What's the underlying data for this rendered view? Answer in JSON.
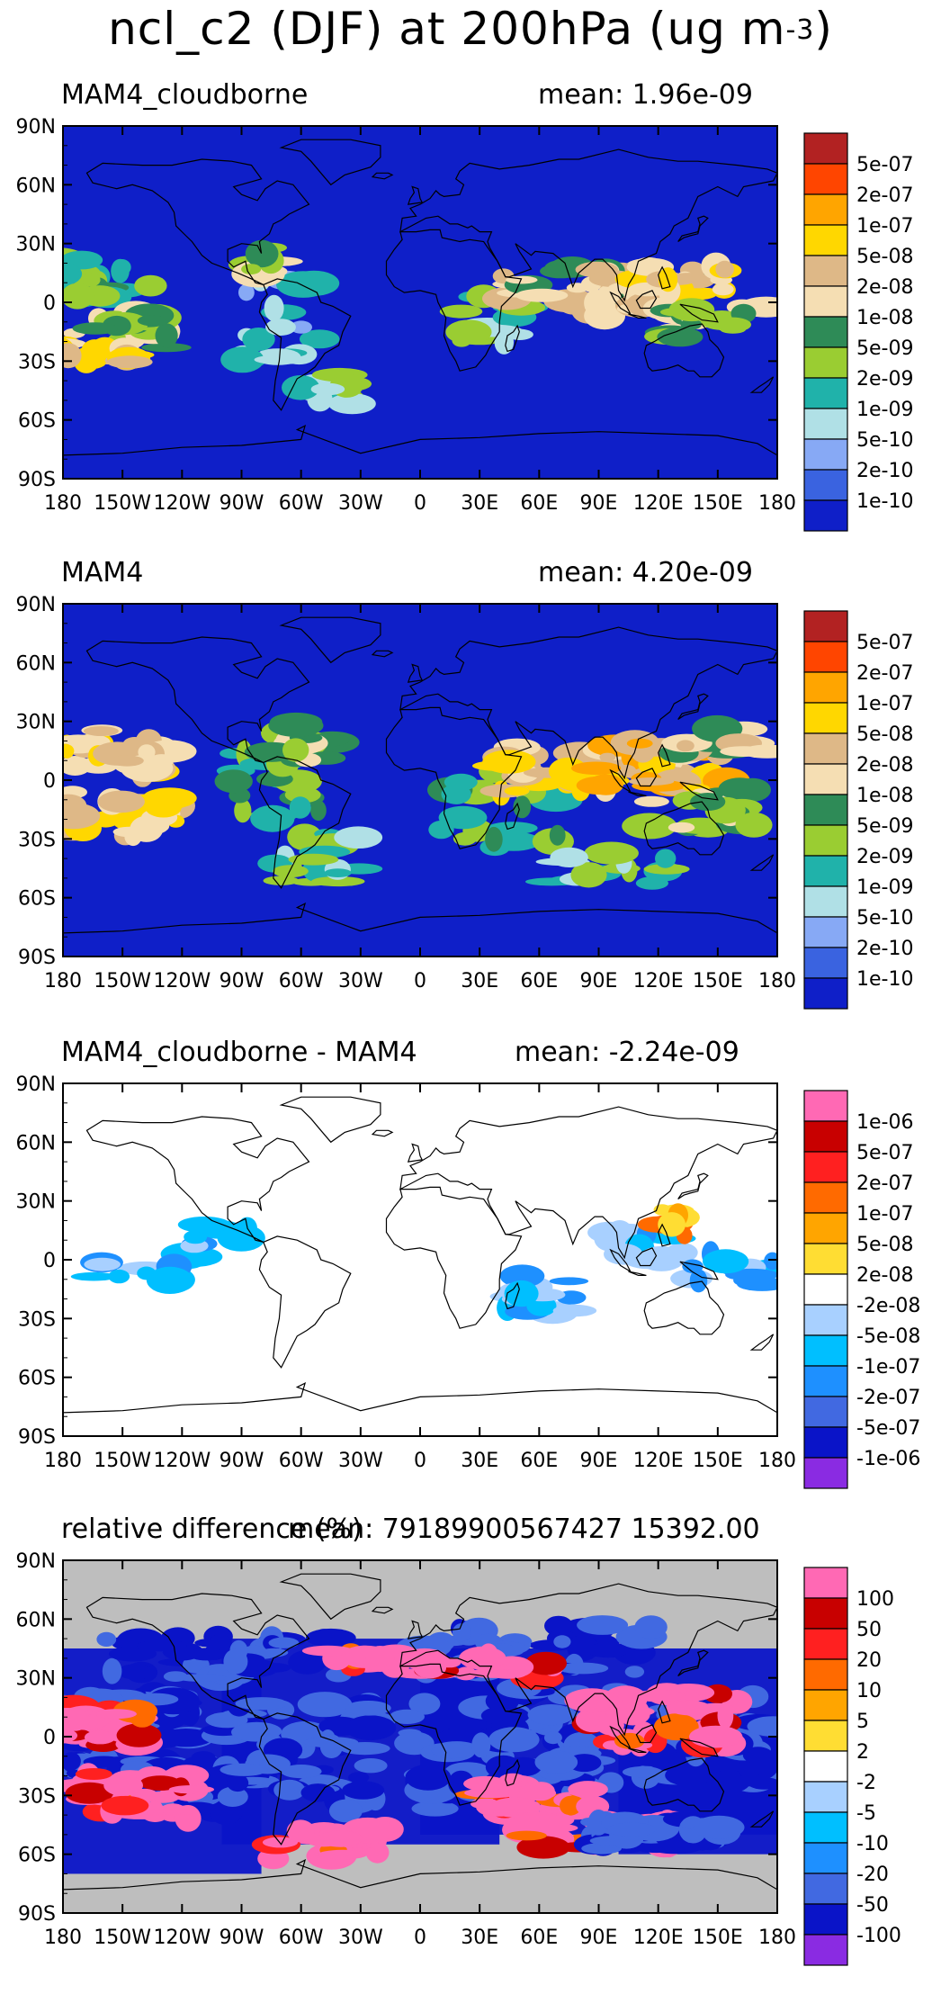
{
  "title": {
    "main": "ncl_c2 (DJF) at 200hPa (ug m",
    "exponent": "-3",
    "close": ")"
  },
  "lat_labels": [
    "90N",
    "60N",
    "30N",
    "0",
    "30S",
    "60S",
    "90S"
  ],
  "lon_labels": [
    "180",
    "150W",
    "120W",
    "90W",
    "60W",
    "30W",
    "0",
    "30E",
    "60E",
    "90E",
    "120E",
    "150E",
    "180"
  ],
  "panels": [
    {
      "label": "MAM4_cloudborne",
      "mean": "mean: 1.96e-09",
      "ocean": "#0f1fc8",
      "legend": {
        "labels": [
          "5e-07",
          "2e-07",
          "1e-07",
          "5e-08",
          "2e-08",
          "1e-08",
          "5e-09",
          "2e-09",
          "1e-09",
          "5e-10",
          "2e-10",
          "1e-10"
        ],
        "colors": [
          "#b22222",
          "#ff4500",
          "#ffa500",
          "#ffd700",
          "#deb887",
          "#f5deb3",
          "#2e8b57",
          "#9acd32",
          "#20b2aa",
          "#b0e0e6",
          "#87a9f5",
          "#3a63e0",
          "#0f1fc8"
        ]
      }
    },
    {
      "label": "MAM4",
      "mean": "mean: 4.20e-09",
      "ocean": "#0f1fc8",
      "legend": {
        "labels": [
          "5e-07",
          "2e-07",
          "1e-07",
          "5e-08",
          "2e-08",
          "1e-08",
          "5e-09",
          "2e-09",
          "1e-09",
          "5e-10",
          "2e-10",
          "1e-10"
        ],
        "colors": [
          "#b22222",
          "#ff4500",
          "#ffa500",
          "#ffd700",
          "#deb887",
          "#f5deb3",
          "#2e8b57",
          "#9acd32",
          "#20b2aa",
          "#b0e0e6",
          "#87a9f5",
          "#3a63e0",
          "#0f1fc8"
        ]
      }
    },
    {
      "label": "MAM4_cloudborne - MAM4",
      "mean": "mean: -2.24e-09",
      "ocean": "#ffffff",
      "legend": {
        "labels": [
          "1e-06",
          "5e-07",
          "2e-07",
          "1e-07",
          "5e-08",
          "2e-08",
          "-2e-08",
          "-5e-08",
          "-1e-07",
          "-2e-07",
          "-5e-07",
          "-1e-06"
        ],
        "colors": [
          "#ff69b4",
          "#c80000",
          "#ff2020",
          "#ff6a00",
          "#ffa500",
          "#ffdd33",
          "#ffffff",
          "#a8d0ff",
          "#00bfff",
          "#1e90ff",
          "#4169e1",
          "#0a14c8",
          "#8a2be2"
        ]
      }
    },
    {
      "label": "relative difference (%)",
      "mean": "mean: 79189900567427 15392.00",
      "ocean": "#bebebe",
      "legend": {
        "labels": [
          "100",
          "50",
          "20",
          "10",
          "5",
          "2",
          "-2",
          "-5",
          "-10",
          "-20",
          "-50",
          "-100"
        ],
        "colors": [
          "#ff69b4",
          "#c80000",
          "#ff2020",
          "#ff6a00",
          "#ffa500",
          "#ffdd33",
          "#ffffff",
          "#a8d0ff",
          "#00bfff",
          "#1e90ff",
          "#4169e1",
          "#0a14c8",
          "#8a2be2"
        ]
      }
    }
  ]
}
